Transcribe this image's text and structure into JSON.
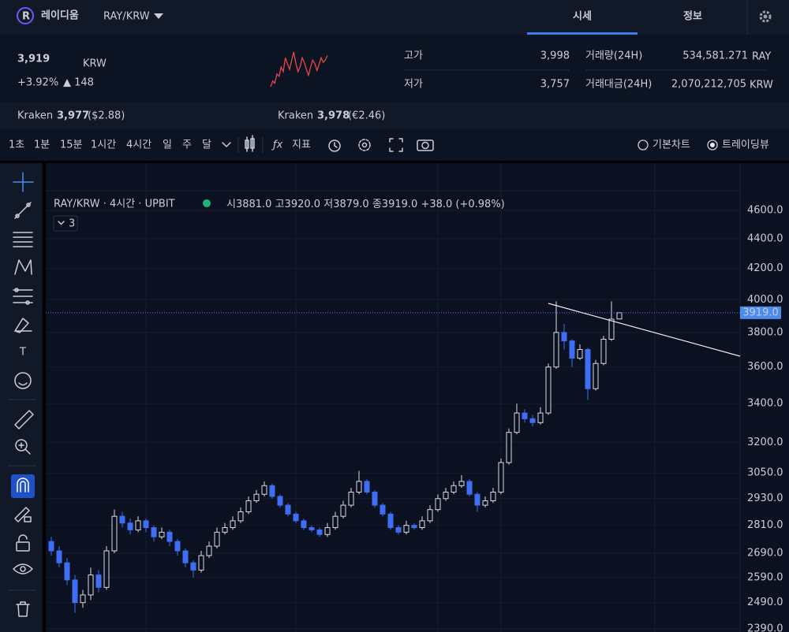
{
  "header": {
    "coin_name": "레이디움",
    "pair": "RAY/KRW",
    "tabs": [
      "시세",
      "정보"
    ]
  },
  "price": {
    "value": "3,919",
    "unit": "KRW",
    "change_rate": "+3.92%",
    "change": "▲ 148"
  },
  "sparkline": {
    "color": "#e5484d",
    "values": [
      3650,
      3700,
      3680,
      3760,
      3740,
      3820,
      3780,
      3900,
      3850,
      3800,
      3880,
      3950,
      3850,
      3780,
      3820,
      3900,
      3860,
      3800,
      3750,
      3820,
      3880,
      3850,
      3790,
      3840,
      3900,
      3860,
      3880,
      3919
    ]
  },
  "stats": {
    "high_label": "고가",
    "high": "3,998",
    "low_label": "저가",
    "low": "3,757",
    "volume_label": "거래량(24H)",
    "volume": "534,581.271",
    "volume_unit": "RAY",
    "amount_label": "거래대금(24H)",
    "amount": "2,070,212,705",
    "amount_unit": "KRW"
  },
  "exchanges": [
    {
      "name": "Kraken",
      "price": "3,977",
      "sub": "($2.88)"
    },
    {
      "name": "Kraken",
      "price": "3,978",
      "sub": "(€2.46)"
    }
  ],
  "toolbar": {
    "intervals": [
      "1초",
      "1분",
      "15분",
      "1시간",
      "4시간",
      "일",
      "주",
      "달"
    ],
    "indicator": "지표",
    "view_options": [
      "기본차트",
      "트레이딩뷰"
    ]
  },
  "chart": {
    "type": "candlestick",
    "legend_title": "RAY/KRW · 4시간 · UPBIT",
    "ohlc": [
      {
        "label": "시",
        "value": "3881.0"
      },
      {
        "label": "고",
        "value": "3920.0"
      },
      {
        "label": "저",
        "value": "3879.0"
      },
      {
        "label": "종",
        "value": "3919.0"
      }
    ],
    "change": "+38.0 (+0.98%)",
    "collapse": "3",
    "last": {
      "value": 3919,
      "label": "3919.0"
    },
    "log_scale": true,
    "grid": true,
    "up_color": "#d8dce4",
    "down_color": "#3d6ef5",
    "ylim": [
      2378,
      4947
    ],
    "yticks": [
      {
        "value": 2390,
        "label": "2390.0"
      },
      {
        "value": 2490,
        "label": "2490.0"
      },
      {
        "value": 2590,
        "label": "2590.0"
      },
      {
        "value": 2690,
        "label": "2690.0"
      },
      {
        "value": 2810,
        "label": "2810.0"
      },
      {
        "value": 2930,
        "label": "2930.0"
      },
      {
        "value": 3050,
        "label": "3050.0"
      },
      {
        "value": 3200,
        "label": "3200.0"
      },
      {
        "value": 3400,
        "label": "3400.0"
      },
      {
        "value": 3600,
        "label": "3600.0"
      },
      {
        "value": 3800,
        "label": "3800.0"
      },
      {
        "value": 4000,
        "label": "4000.0"
      },
      {
        "value": 4200,
        "label": "4200.0"
      },
      {
        "value": 4400,
        "label": "4400.0"
      },
      {
        "value": 4600,
        "label": "4600.0"
      }
    ],
    "candles": [
      [
        2740,
        2760,
        2680,
        2700
      ],
      [
        2700,
        2720,
        2630,
        2650
      ],
      [
        2650,
        2670,
        2560,
        2580
      ],
      [
        2580,
        2600,
        2450,
        2490
      ],
      [
        2490,
        2540,
        2470,
        2520
      ],
      [
        2520,
        2630,
        2500,
        2600
      ],
      [
        2600,
        2620,
        2530,
        2550
      ],
      [
        2550,
        2720,
        2540,
        2700
      ],
      [
        2700,
        2880,
        2690,
        2850
      ],
      [
        2850,
        2870,
        2800,
        2820
      ],
      [
        2820,
        2840,
        2770,
        2790
      ],
      [
        2790,
        2850,
        2780,
        2830
      ],
      [
        2830,
        2840,
        2780,
        2800
      ],
      [
        2800,
        2810,
        2740,
        2760
      ],
      [
        2760,
        2800,
        2750,
        2780
      ],
      [
        2780,
        2790,
        2720,
        2740
      ],
      [
        2740,
        2750,
        2680,
        2700
      ],
      [
        2700,
        2710,
        2630,
        2650
      ],
      [
        2650,
        2660,
        2590,
        2620
      ],
      [
        2620,
        2700,
        2610,
        2680
      ],
      [
        2680,
        2740,
        2670,
        2720
      ],
      [
        2720,
        2800,
        2710,
        2780
      ],
      [
        2780,
        2820,
        2770,
        2800
      ],
      [
        2800,
        2850,
        2790,
        2830
      ],
      [
        2830,
        2890,
        2820,
        2870
      ],
      [
        2870,
        2940,
        2860,
        2920
      ],
      [
        2920,
        2970,
        2910,
        2950
      ],
      [
        2950,
        3010,
        2940,
        2990
      ],
      [
        2990,
        3000,
        2930,
        2940
      ],
      [
        2940,
        2950,
        2890,
        2900
      ],
      [
        2900,
        2910,
        2850,
        2860
      ],
      [
        2860,
        2870,
        2820,
        2830
      ],
      [
        2830,
        2840,
        2790,
        2800
      ],
      [
        2800,
        2810,
        2780,
        2790
      ],
      [
        2790,
        2800,
        2760,
        2770
      ],
      [
        2770,
        2820,
        2760,
        2800
      ],
      [
        2800,
        2870,
        2790,
        2850
      ],
      [
        2850,
        2920,
        2840,
        2900
      ],
      [
        2900,
        2980,
        2890,
        2960
      ],
      [
        2960,
        3060,
        2950,
        3010
      ],
      [
        3010,
        3020,
        2950,
        2960
      ],
      [
        2960,
        2970,
        2890,
        2900
      ],
      [
        2900,
        2910,
        2850,
        2860
      ],
      [
        2860,
        2870,
        2790,
        2800
      ],
      [
        2800,
        2810,
        2770,
        2780
      ],
      [
        2780,
        2830,
        2770,
        2810
      ],
      [
        2810,
        2820,
        2790,
        2800
      ],
      [
        2800,
        2850,
        2790,
        2830
      ],
      [
        2830,
        2900,
        2820,
        2880
      ],
      [
        2880,
        2950,
        2870,
        2930
      ],
      [
        2930,
        2980,
        2920,
        2960
      ],
      [
        2960,
        3010,
        2950,
        2990
      ],
      [
        2990,
        3040,
        2980,
        3010
      ],
      [
        3010,
        3020,
        2940,
        2950
      ],
      [
        2950,
        2960,
        2870,
        2900
      ],
      [
        2900,
        2940,
        2890,
        2920
      ],
      [
        2920,
        2980,
        2910,
        2960
      ],
      [
        2960,
        3120,
        2950,
        3100
      ],
      [
        3100,
        3270,
        3090,
        3250
      ],
      [
        3250,
        3400,
        3240,
        3350
      ],
      [
        3350,
        3370,
        3300,
        3320
      ],
      [
        3320,
        3340,
        3280,
        3300
      ],
      [
        3300,
        3380,
        3290,
        3350
      ],
      [
        3350,
        3620,
        3340,
        3600
      ],
      [
        3600,
        3990,
        3590,
        3800
      ],
      [
        3800,
        3850,
        3700,
        3750
      ],
      [
        3750,
        3760,
        3600,
        3650
      ],
      [
        3650,
        3730,
        3640,
        3700
      ],
      [
        3700,
        3710,
        3420,
        3480
      ],
      [
        3480,
        3640,
        3470,
        3620
      ],
      [
        3620,
        3780,
        3610,
        3760
      ],
      [
        3760,
        3990,
        3750,
        3880
      ],
      [
        3881,
        3920,
        3879,
        3919
      ]
    ]
  }
}
